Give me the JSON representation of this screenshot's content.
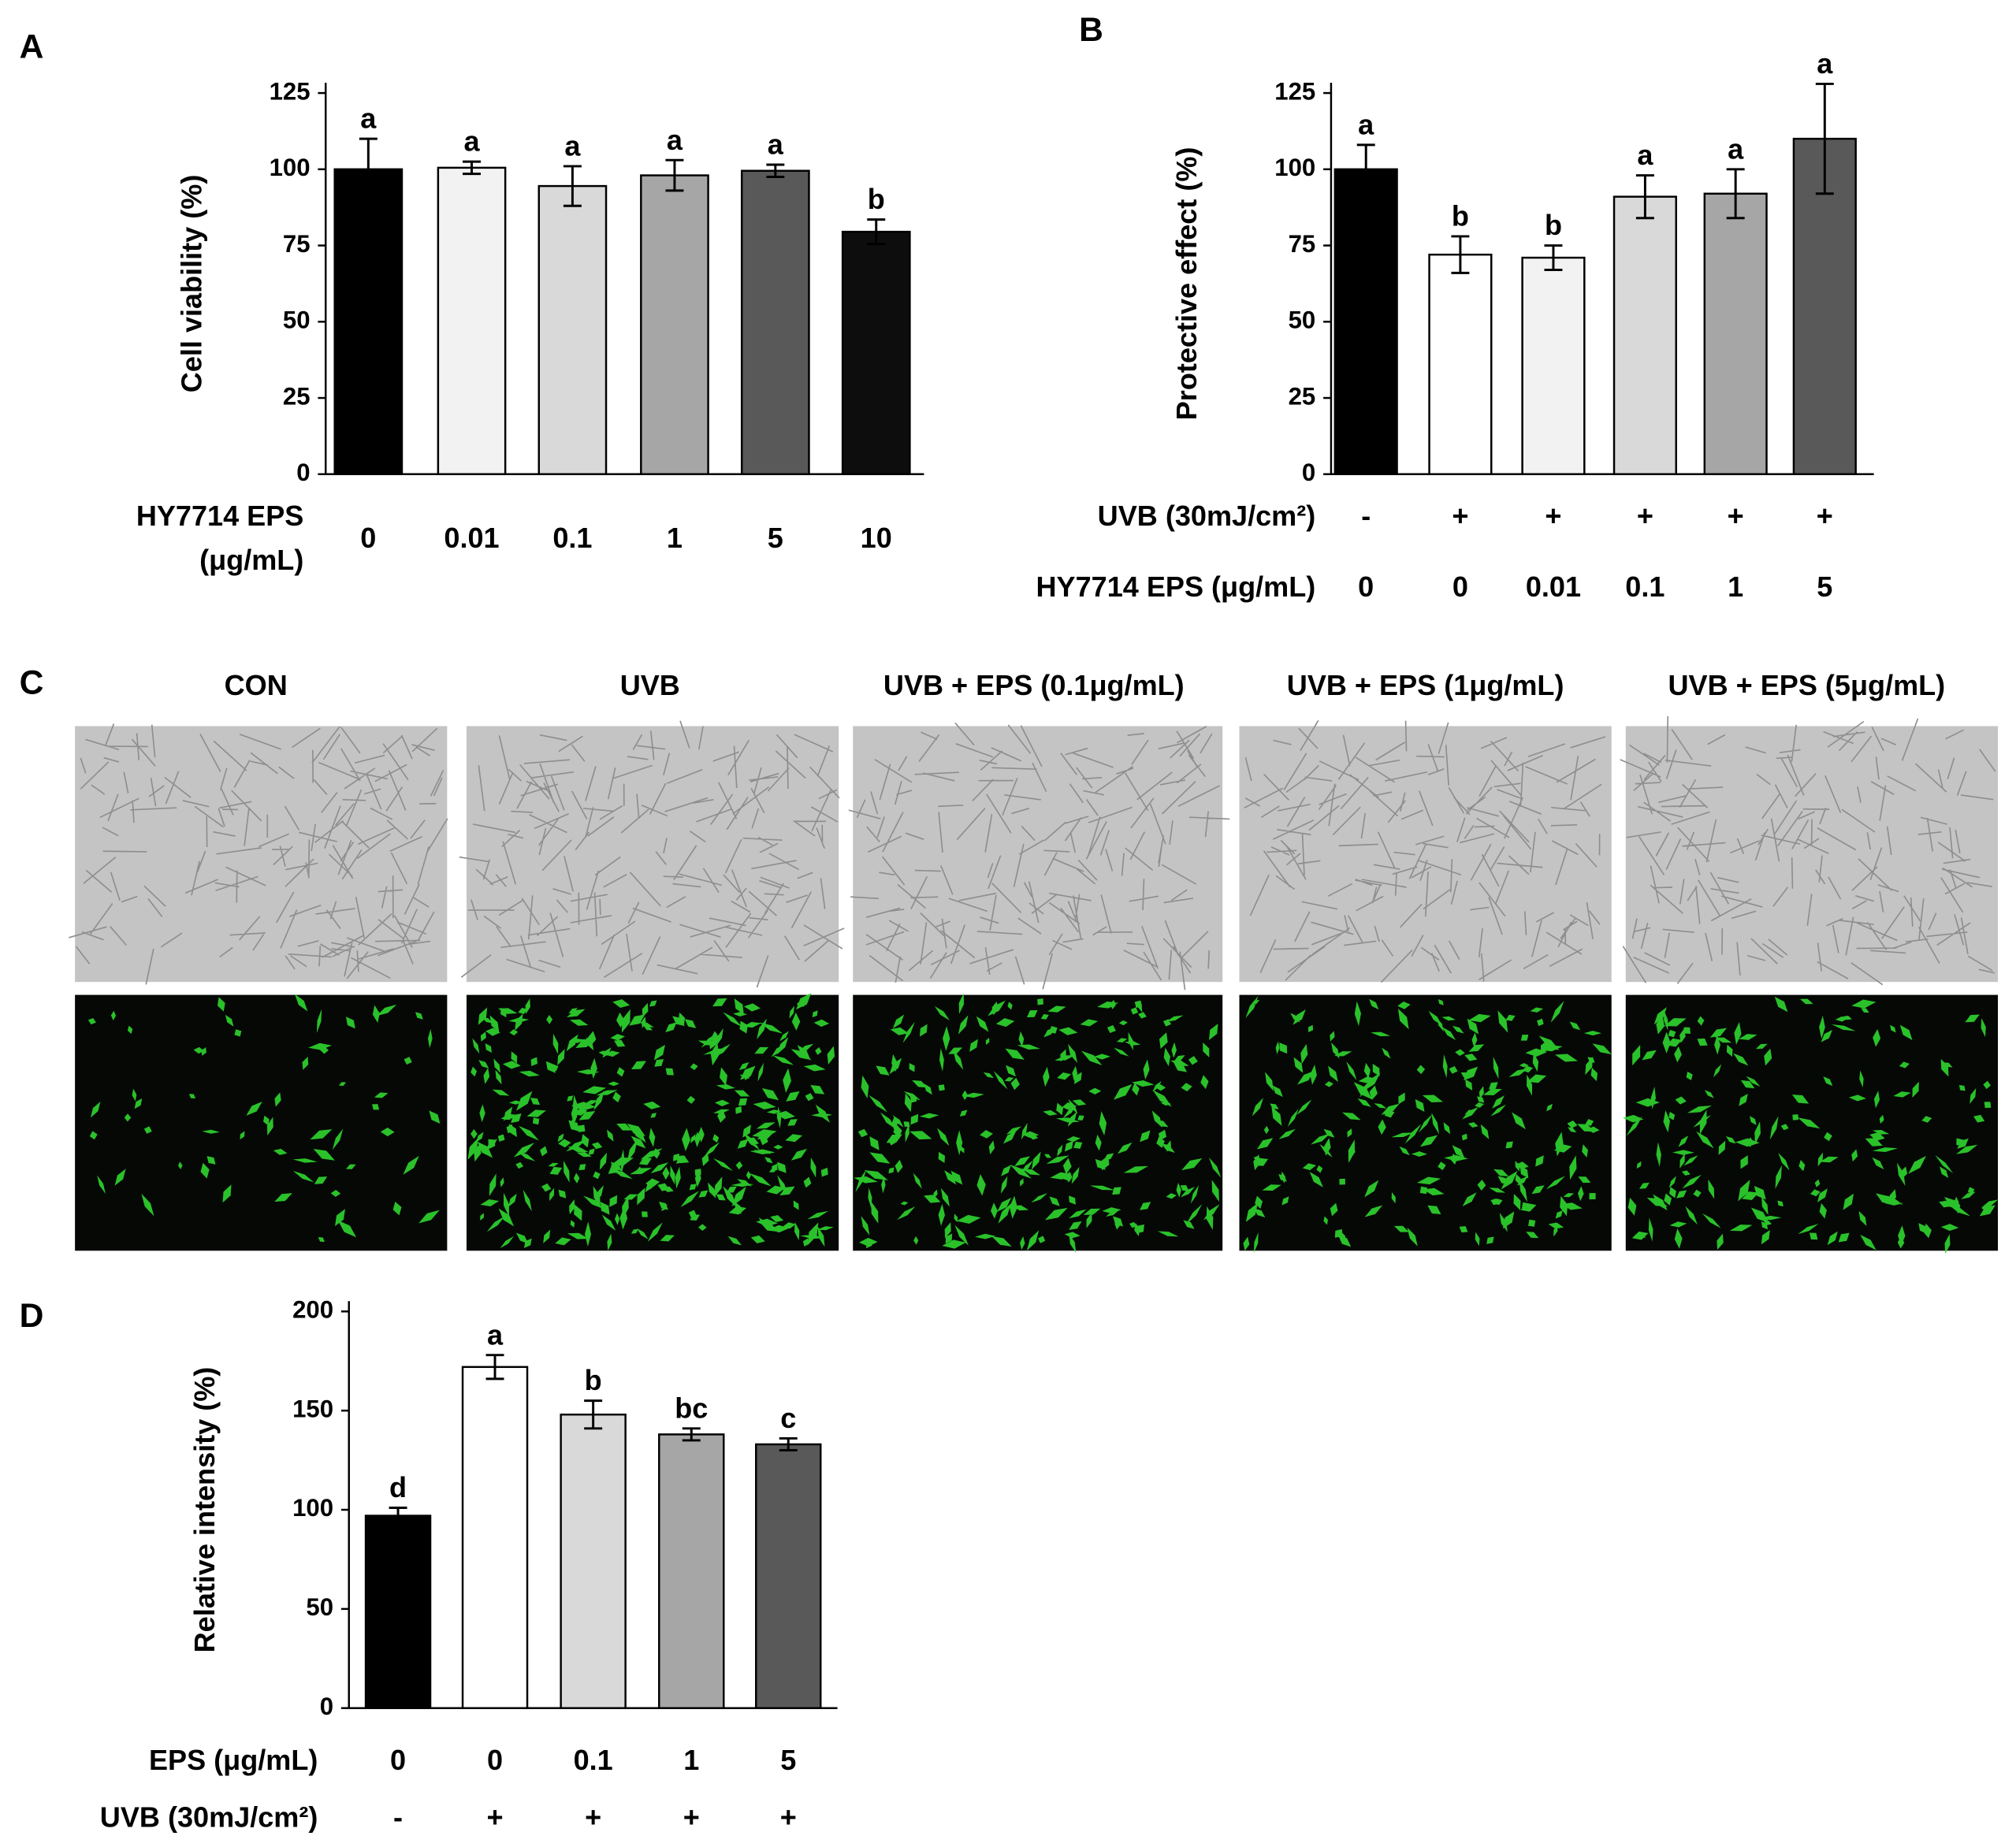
{
  "chart_data": [
    {
      "type": "bar",
      "panel": "A",
      "ylabel": "Cell viability (%)",
      "xlabel": [
        "HY7714 EPS",
        "(μg/mL)"
      ],
      "categories": [
        "0",
        "0.01",
        "0.1",
        "1",
        "5",
        "10"
      ],
      "values": [
        100,
        100.5,
        94.5,
        98,
        99.5,
        79.5
      ],
      "errors": [
        10,
        2,
        6.5,
        5,
        2,
        4
      ],
      "significance": [
        "a",
        "a",
        "a",
        "a",
        "a",
        "b"
      ],
      "colors": [
        "#000000",
        "#f2f2f2",
        "#d9d9d9",
        "#a6a6a6",
        "#595959",
        "#0d0d0d"
      ],
      "ylim": [
        0,
        125
      ],
      "yticks": [
        0,
        25,
        50,
        75,
        100,
        125
      ]
    },
    {
      "type": "bar",
      "panel": "B",
      "ylabel": "Protective effect (%)",
      "xlabel": "HY7714 EPS (μg/mL)",
      "categories": [
        "0",
        "0",
        "0.01",
        "0.1",
        "1",
        "5"
      ],
      "treatment_row": {
        "label": "UVB (30mJ/cm²)",
        "values": [
          "-",
          "+",
          "+",
          "+",
          "+",
          "+"
        ]
      },
      "treatment_position": "above",
      "values": [
        100,
        72,
        71,
        91,
        92,
        110
      ],
      "errors": [
        8,
        6,
        4,
        7,
        8,
        18
      ],
      "significance": [
        "a",
        "b",
        "b",
        "a",
        "a",
        "a"
      ],
      "colors": [
        "#000000",
        "#ffffff",
        "#f2f2f2",
        "#d9d9d9",
        "#a6a6a6",
        "#595959"
      ],
      "ylim": [
        0,
        125
      ],
      "yticks": [
        0,
        25,
        50,
        75,
        100,
        125
      ]
    },
    {
      "type": "bar",
      "panel": "D",
      "ylabel": "Relative intensity (%)",
      "xlabel": "EPS (μg/mL)",
      "categories": [
        "0",
        "0",
        "0.1",
        "1",
        "5"
      ],
      "treatment_row": {
        "label": "UVB (30mJ/cm²)",
        "values": [
          "-",
          "+",
          "+",
          "+",
          "+"
        ]
      },
      "treatment_position": "below",
      "values": [
        97,
        172,
        148,
        138,
        133
      ],
      "errors": [
        4,
        6,
        7,
        3,
        3
      ],
      "significance": [
        "d",
        "a",
        "b",
        "bc",
        "c"
      ],
      "colors": [
        "#000000",
        "#ffffff",
        "#d9d9d9",
        "#a6a6a6",
        "#595959"
      ],
      "ylim": [
        0,
        200
      ],
      "yticks": [
        0,
        50,
        100,
        150,
        200
      ]
    }
  ],
  "panel_c": {
    "label": "C",
    "titles": [
      "CON",
      "UVB",
      "UVB +  EPS (0.1μg/mL)",
      "UVB + EPS (1μg/mL)",
      "UVB + EPS (5μg/mL)"
    ]
  }
}
